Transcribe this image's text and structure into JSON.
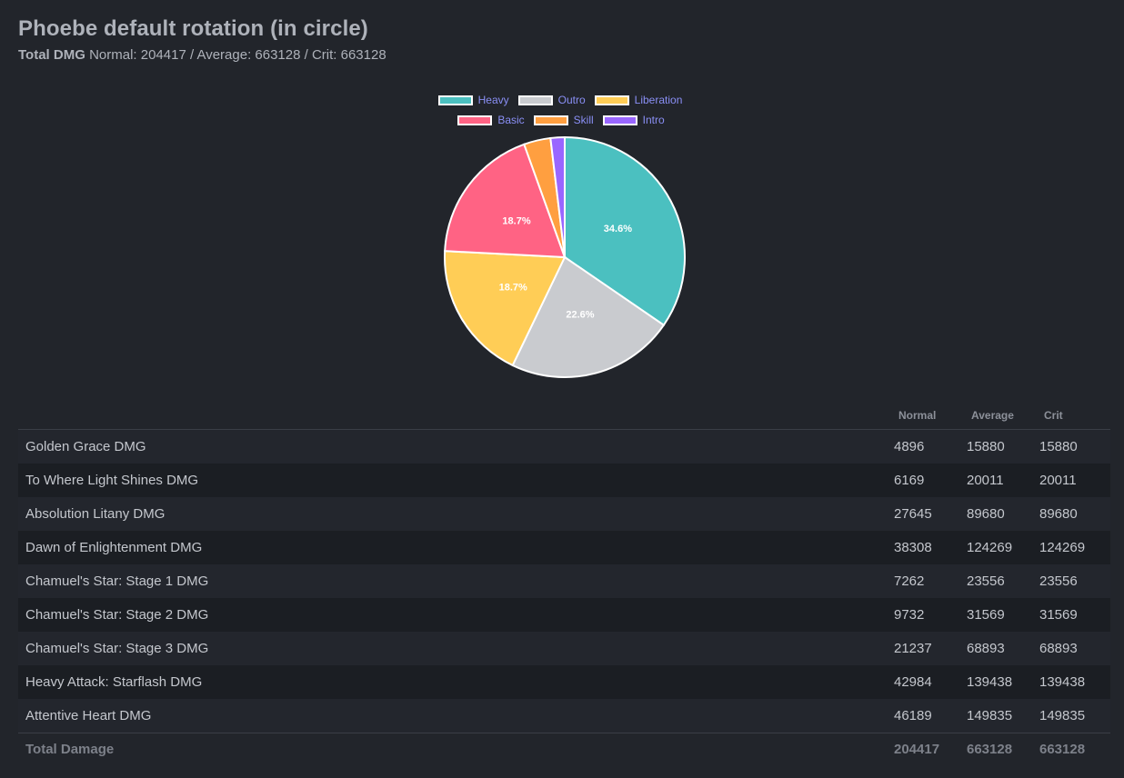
{
  "title": "Phoebe default rotation (in circle)",
  "subtitle": {
    "label": "Total DMG",
    "text": "Normal: 204417 / Average: 663128 / Crit: 663128"
  },
  "chart_data": {
    "type": "pie",
    "categories": [
      "Heavy",
      "Outro",
      "Liberation",
      "Basic",
      "Skill",
      "Intro"
    ],
    "values": [
      34.6,
      22.6,
      18.7,
      18.7,
      3.6,
      1.9
    ],
    "colors": [
      "#4bc0c0",
      "#c9cbcf",
      "#ffcd56",
      "#ff6384",
      "#ff9f40",
      "#9966ff"
    ],
    "data_labels": [
      "34.6%",
      "22.6%",
      "18.7%",
      "18.7%",
      "",
      ""
    ],
    "legend_position": "top"
  },
  "legend": {
    "row1": [
      {
        "label": "Heavy",
        "color": "#4bc0c0"
      },
      {
        "label": "Outro",
        "color": "#c9cbcf"
      },
      {
        "label": "Liberation",
        "color": "#ffcd56"
      }
    ],
    "row2": [
      {
        "label": "Basic",
        "color": "#ff6384"
      },
      {
        "label": "Skill",
        "color": "#ff9f40"
      },
      {
        "label": "Intro",
        "color": "#9966ff"
      }
    ]
  },
  "table": {
    "headers": {
      "name": "",
      "normal": "Normal",
      "average": "Average",
      "crit": "Crit"
    },
    "rows": [
      {
        "name": "Golden Grace DMG",
        "normal": "4896",
        "average": "15880",
        "crit": "15880"
      },
      {
        "name": "To Where Light Shines DMG",
        "normal": "6169",
        "average": "20011",
        "crit": "20011"
      },
      {
        "name": "Absolution Litany DMG",
        "normal": "27645",
        "average": "89680",
        "crit": "89680"
      },
      {
        "name": "Dawn of Enlightenment DMG",
        "normal": "38308",
        "average": "124269",
        "crit": "124269"
      },
      {
        "name": "Chamuel's Star: Stage 1 DMG",
        "normal": "7262",
        "average": "23556",
        "crit": "23556"
      },
      {
        "name": "Chamuel's Star: Stage 2 DMG",
        "normal": "9732",
        "average": "31569",
        "crit": "31569"
      },
      {
        "name": "Chamuel's Star: Stage 3 DMG",
        "normal": "21237",
        "average": "68893",
        "crit": "68893"
      },
      {
        "name": "Heavy Attack: Starflash DMG",
        "normal": "42984",
        "average": "139438",
        "crit": "139438"
      },
      {
        "name": "Attentive Heart DMG",
        "normal": "46189",
        "average": "149835",
        "crit": "149835"
      }
    ],
    "footer": {
      "name": "Total Damage",
      "normal": "204417",
      "average": "663128",
      "crit": "663128"
    }
  }
}
